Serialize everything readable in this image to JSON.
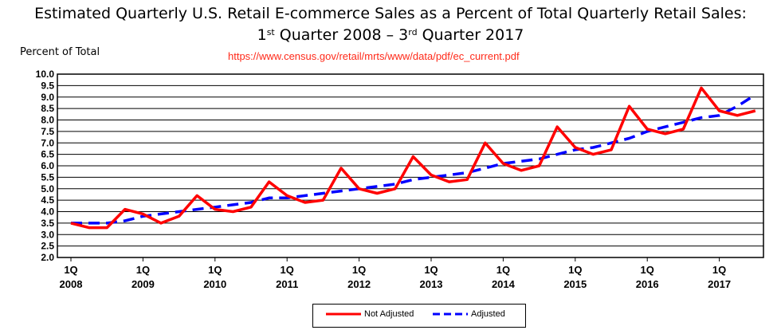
{
  "chart_data": {
    "type": "line",
    "title_line1": "Estimated Quarterly U.S. Retail E-commerce Sales as a Percent of Total Quarterly Retail Sales:",
    "title_line2_parts": [
      "1",
      "st",
      " Quarter 2008 – 3",
      "rd",
      " Quarter 2017"
    ],
    "ylabel": "Percent of Total",
    "source": "https://www.census.gov/retail/mrts/www/data/pdf/ec_current.pdf",
    "ylim": [
      2.0,
      10.0
    ],
    "yticks": [
      "2.0",
      "2.5",
      "3.0",
      "3.5",
      "4.0",
      "4.5",
      "5.0",
      "5.5",
      "6.0",
      "6.5",
      "7.0",
      "7.5",
      "8.0",
      "8.5",
      "9.0",
      "9.5",
      "10.0"
    ],
    "x_tick_labels": [
      {
        "q": "1Q",
        "year": "2008"
      },
      {
        "q": "1Q",
        "year": "2009"
      },
      {
        "q": "1Q",
        "year": "2010"
      },
      {
        "q": "1Q",
        "year": "2011"
      },
      {
        "q": "1Q",
        "year": "2012"
      },
      {
        "q": "1Q",
        "year": "2013"
      },
      {
        "q": "1Q",
        "year": "2014"
      },
      {
        "q": "1Q",
        "year": "2015"
      },
      {
        "q": "1Q",
        "year": "2016"
      },
      {
        "q": "1Q",
        "year": "2017"
      }
    ],
    "legend_placement": "bottom-center",
    "series": [
      {
        "name": "Not Adjusted",
        "color": "#ff0000",
        "style": "solid",
        "values": [
          3.5,
          3.3,
          3.3,
          4.1,
          3.9,
          3.5,
          3.8,
          4.7,
          4.1,
          4.0,
          4.2,
          5.3,
          4.7,
          4.4,
          4.5,
          5.9,
          5.0,
          4.8,
          5.0,
          6.4,
          5.6,
          5.3,
          5.4,
          7.0,
          6.1,
          5.8,
          6.0,
          7.7,
          6.8,
          6.5,
          6.7,
          8.6,
          7.6,
          7.4,
          7.6,
          9.4,
          8.4,
          8.2,
          8.4
        ]
      },
      {
        "name": "Adjusted",
        "color": "#0000ff",
        "style": "dashed",
        "values": [
          3.5,
          3.5,
          3.5,
          3.6,
          3.8,
          3.9,
          4.0,
          4.1,
          4.2,
          4.3,
          4.4,
          4.6,
          4.6,
          4.7,
          4.8,
          4.9,
          5.0,
          5.1,
          5.2,
          5.4,
          5.5,
          5.6,
          5.7,
          5.9,
          6.1,
          6.2,
          6.3,
          6.5,
          6.7,
          6.8,
          7.0,
          7.2,
          7.5,
          7.7,
          7.9,
          8.1,
          8.2,
          8.6,
          9.1
        ]
      }
    ]
  }
}
